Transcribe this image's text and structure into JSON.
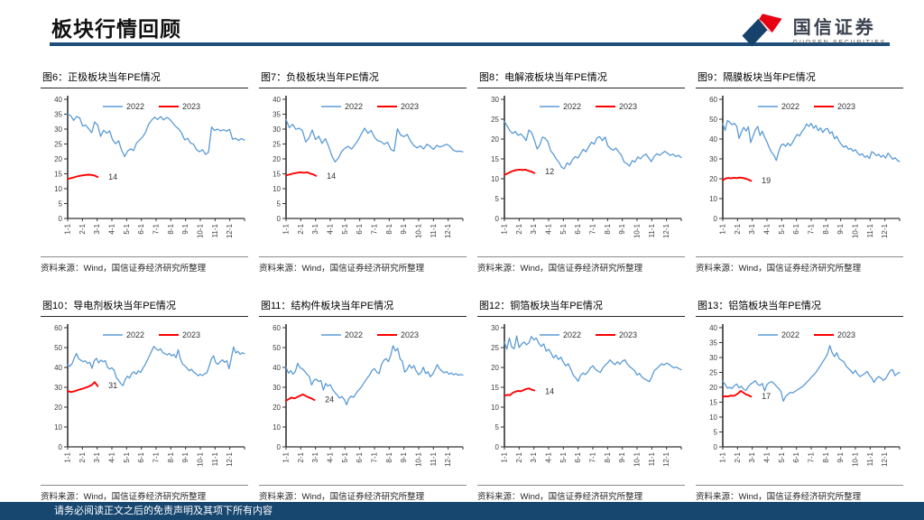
{
  "header": {
    "title": "板块行情回顾"
  },
  "logo": {
    "name_cn": "国信证券",
    "name_en": "GUOSEN SECURITIES",
    "colors": {
      "blue": "#16426B",
      "red": "#E60012"
    }
  },
  "footer": {
    "disclaimer": "请务必阅读正文之后的免责声明及其项下所有内容"
  },
  "colors": {
    "blue_line": "#5B9BD5",
    "red_line": "#FF0000",
    "navy": "#1F4E79",
    "axis": "#333333",
    "tick_text": "#404040"
  },
  "chart_data": {
    "type": "line",
    "x_labels": [
      "1-1",
      "2-1",
      "3-1",
      "4-1",
      "5-1",
      "6-1",
      "7-1",
      "8-1",
      "9-1",
      "10-1",
      "11-1",
      "12-1"
    ],
    "legend": [
      "2022",
      "2023"
    ],
    "legend_position": "top-center",
    "grid": false,
    "charts": [
      {
        "title": "图6：正极板块当年PE情况",
        "ylim": [
          0,
          40
        ],
        "ystep": 5,
        "series_2022": [
          35,
          34.5,
          32.9,
          34.2,
          33.8,
          31,
          31.4,
          30.1,
          28.8,
          32.4,
          31.4,
          27.6,
          29.6,
          28.6,
          29.4,
          26.4,
          25.1,
          26.1,
          22.9,
          20.8,
          22.6,
          23.4,
          22.8,
          25.4,
          26.3,
          27.4,
          29,
          31.6,
          33,
          34,
          33.2,
          34.2,
          33.1,
          33.9,
          33.4,
          32.1,
          30.9,
          30.1,
          28.7,
          26.4,
          26.9,
          25.3,
          24.9,
          23.1,
          22.4,
          23.1,
          21.5,
          22.2,
          30.7,
          29.5,
          30,
          29.4,
          29.8,
          29.3,
          29.9,
          26.6,
          26.9,
          26.2,
          26.8,
          26.3
        ],
        "series_2023": [
          13.2,
          13.5,
          13.8,
          14.1,
          14.3,
          14.5,
          14.6,
          14.7,
          14.6,
          14.4,
          13.9
        ],
        "red_x_end": 0.17,
        "annotation": "14",
        "annotation_y": 14,
        "source": "资料来源：Wind，国信证券经济研究所整理"
      },
      {
        "title": "图7：负极板块当年PE情况",
        "ylim": [
          0,
          40
        ],
        "ystep": 5,
        "series_2022": [
          33.2,
          30.5,
          31.6,
          29.9,
          30.3,
          29.5,
          25.7,
          26.9,
          29.7,
          26.5,
          27.6,
          25.2,
          26.8,
          24.2,
          21,
          19,
          20.3,
          22.5,
          23.6,
          24.2,
          23.3,
          24.7,
          26.3,
          28.4,
          30.3,
          28.6,
          29.5,
          27.3,
          26.1,
          25.8,
          24.9,
          25.6,
          23.2,
          22.6,
          30.1,
          28,
          27.5,
          28.2,
          26,
          24.5,
          23.7,
          24.4,
          23.3,
          24.9,
          24.2,
          23.2,
          24.5,
          24,
          24.4,
          24.9,
          24.3,
          23,
          22.5,
          22.6,
          22.4
        ],
        "series_2023": [
          14.5,
          14.7,
          15,
          15.2,
          15.4,
          15.5,
          15.3,
          15.5,
          15.1,
          14.8,
          14.3
        ],
        "red_x_end": 0.17,
        "annotation": "14",
        "annotation_y": 14.3,
        "source": "资料来源：Wind，国信证券经济研究所整理"
      },
      {
        "title": "图8：电解液板块当年PE情况",
        "ylim": [
          0,
          30
        ],
        "ystep": 5,
        "series_2022": [
          24.4,
          23.3,
          22.1,
          21.4,
          21.9,
          20.9,
          21.3,
          20.6,
          19.6,
          22.3,
          21.6,
          19.8,
          17.5,
          18.5,
          20.5,
          20.2,
          19.3,
          17,
          16.2,
          15,
          14.2,
          12.9,
          12.5,
          14,
          13.5,
          14.8,
          15.6,
          15.2,
          16.3,
          17.4,
          16.8,
          18.1,
          19.2,
          18.7,
          20.3,
          20.6,
          19.6,
          20.5,
          18.3,
          17.6,
          17.2,
          17.7,
          16.8,
          15.9,
          14.2,
          13.8,
          13.2,
          14.6,
          14.2,
          15.5,
          15,
          15.8,
          16.2,
          15.3,
          14.3,
          15.6,
          16.3,
          15.9,
          16.4,
          16.9,
          16.4,
          15.9,
          16.2,
          15.6,
          15.9,
          15.3
        ],
        "series_2023": [
          11,
          11.3,
          11.7,
          12,
          12.2,
          12.3,
          12.2,
          12.3,
          12,
          11.8,
          11.4
        ],
        "red_x_end": 0.17,
        "annotation": "12",
        "annotation_y": 11.8,
        "source": "资料来源：Wind，国信证券经济研究所整理"
      },
      {
        "title": "图9：隔膜板块当年PE情况",
        "ylim": [
          0,
          60
        ],
        "ystep": 10,
        "series_2022": [
          47.8,
          44.3,
          49.3,
          48.5,
          47.2,
          47.9,
          46.3,
          40.3,
          43.6,
          45.9,
          44,
          46.2,
          38.2,
          41.5,
          44.5,
          46.3,
          41.8,
          43.9,
          40.9,
          38.5,
          35.5,
          33.2,
          31.9,
          29.2,
          33.5,
          36.8,
          37.5,
          36.3,
          37.9,
          36.6,
          38.3,
          40.6,
          42.3,
          41.5,
          43.8,
          45.2,
          47.6,
          46.3,
          47.9,
          45.4,
          46.8,
          44.2,
          45.6,
          43.3,
          44.9,
          45.3,
          42.8,
          43.6,
          40.2,
          41.3,
          38.9,
          37.2,
          35.9,
          36.6,
          34.8,
          35.3,
          33.9,
          34.6,
          32.8,
          31.9,
          32.6,
          30.8,
          31.5,
          30.2,
          33.6,
          32.9,
          31.6,
          32.3,
          30.9,
          31.8,
          30.4,
          32.9,
          31.4,
          29.8,
          30.6,
          29.3,
          28.7
        ],
        "series_2023": [
          19.3,
          20.1,
          20.4,
          20.2,
          20.5,
          20.3,
          20.6,
          20.4,
          20.1,
          19.6,
          18.9
        ],
        "red_x_end": 0.16,
        "annotation": "19",
        "annotation_y": 19.2,
        "source": "资料来源：Wind，国信证券经济研究所整理"
      },
      {
        "title": "图10：导电剂板块当年PE情况",
        "ylim": [
          0,
          60
        ],
        "ystep": 10,
        "series_2022": [
          41.3,
          40.6,
          41.9,
          44.8,
          47,
          44.3,
          43.6,
          42.9,
          43.3,
          42.1,
          42.6,
          39.6,
          43.3,
          44.6,
          42.3,
          43.7,
          42.9,
          43.4,
          40.1,
          39.2,
          39.8,
          38.6,
          34.9,
          33.6,
          31.9,
          30.8,
          33.9,
          35.6,
          34.7,
          36.9,
          37.8,
          36.6,
          38.3,
          37.4,
          39.6,
          41.3,
          43.6,
          45.9,
          48.3,
          50.6,
          49.3,
          48.6,
          49.4,
          47.6,
          46.9,
          46.3,
          47.1,
          45.8,
          46.6,
          44.9,
          48.9,
          44.3,
          41.6,
          40.9,
          39.6,
          38.3,
          39.1,
          37.6,
          36.9,
          35.8,
          36.6,
          35.9,
          36.8,
          37.3,
          40.6,
          44.3,
          45.8,
          42.3,
          41.6,
          42.9,
          43.8,
          42.6,
          43.4,
          39.3,
          44.6,
          50.3,
          47.3,
          48.1,
          46.6,
          47.4,
          46.9
        ],
        "series_2023": [
          28.2,
          27.6,
          27.9,
          28.4,
          28.9,
          29.3,
          29.8,
          30.4,
          31.2,
          32.6,
          30.6
        ],
        "red_x_end": 0.17,
        "annotation": "31",
        "annotation_y": 30.8,
        "source": "资料来源：Wind，国信证券经济研究所整理"
      },
      {
        "title": "图11：结构件板块当年PE情况",
        "ylim": [
          0,
          60
        ],
        "ystep": 10,
        "series_2022": [
          40.2,
          37.1,
          38.4,
          36.6,
          37.9,
          42.1,
          39.8,
          39.3,
          38.1,
          36.6,
          35.4,
          31.2,
          33.6,
          34.1,
          32.9,
          33.4,
          28.6,
          31.9,
          30.6,
          31.3,
          28.9,
          27.3,
          26.1,
          24.6,
          25.3,
          23.9,
          21.2,
          24.3,
          25.6,
          24.9,
          26.8,
          28.3,
          29.6,
          31.3,
          33.1,
          34.9,
          36.3,
          38.6,
          39.4,
          37.6,
          36.9,
          41.3,
          43.6,
          44.4,
          42.9,
          46.4,
          50.9,
          48.3,
          49.6,
          44.3,
          43.1,
          37.6,
          38.9,
          41.3,
          39.6,
          40.9,
          38.1,
          36.3,
          37.4,
          40.1,
          36.9,
          37.8,
          35.3,
          36.6,
          38.9,
          41.4,
          39.3,
          38.1,
          37.3,
          37.9,
          36.6,
          37.2,
          36.3,
          36.9,
          36.1,
          36.4,
          36.2
        ],
        "series_2023": [
          23.2,
          24.1,
          24.8,
          24.4,
          25.1,
          25.8,
          26.4,
          25.6,
          24.9,
          24.4,
          23.6
        ],
        "red_x_end": 0.16,
        "annotation": "24",
        "annotation_y": 23.8,
        "source": "资料来源：Wind，国信证券经济研究所整理"
      },
      {
        "title": "图12：铜箔板块当年PE情况",
        "ylim": [
          0,
          30
        ],
        "ystep": 5,
        "series_2022": [
          26.4,
          24.6,
          27.4,
          25.1,
          24.7,
          27.9,
          25,
          25.9,
          26.4,
          25.7,
          26.2,
          27.8,
          26.9,
          27.4,
          26.1,
          25.3,
          25.9,
          24.1,
          24.6,
          23.6,
          22.4,
          23.1,
          22,
          22.6,
          21.3,
          20.4,
          20.9,
          19.6,
          18.1,
          17.4,
          16.5,
          18,
          18.6,
          18.2,
          18.9,
          19.9,
          20.4,
          19.6,
          19.1,
          18.7,
          19.8,
          20.6,
          21.1,
          21.9,
          21.2,
          20.7,
          21.4,
          20.8,
          21.6,
          21.9,
          20.9,
          20.2,
          19.7,
          19.2,
          18.1,
          18.5,
          17.6,
          17.1,
          16.8,
          16.4,
          17.6,
          19.2,
          19.7,
          20.3,
          20.9,
          20.6,
          21.1,
          20.8,
          20.3,
          19.9,
          20.1,
          19.7,
          19.4
        ],
        "series_2023": [
          12.9,
          13.1,
          13,
          13.6,
          13.9,
          14.1,
          14,
          14.3,
          14.6,
          14.7,
          14.4,
          14.2
        ],
        "red_x_end": 0.17,
        "annotation": "14",
        "annotation_y": 14,
        "source": "资料来源：Wind，国信证券经济研究所整理"
      },
      {
        "title": "图13：铝箔板块当年PE情况",
        "ylim": [
          0,
          40
        ],
        "ystep": 5,
        "series_2022": [
          22.1,
          21,
          19.7,
          20,
          19.6,
          20.6,
          21.1,
          19.8,
          20.4,
          19.3,
          19,
          20.3,
          21.1,
          21.6,
          22.2,
          21,
          20.6,
          21.3,
          18.8,
          20.9,
          21.6,
          21.9,
          21.3,
          20.4,
          19.6,
          18.6,
          15.3,
          16.9,
          17.6,
          18.3,
          18.1,
          18.6,
          19.1,
          19.6,
          20.1,
          20.8,
          21.6,
          22.4,
          23.3,
          24.1,
          25,
          26.1,
          27.3,
          28.6,
          29.8,
          31.2,
          34,
          31.6,
          30.3,
          31.6,
          29.6,
          29.1,
          28.6,
          27.1,
          26.3,
          25.6,
          24.6,
          25.7,
          24.3,
          23.6,
          24.1,
          24.6,
          25.3,
          24.1,
          23.1,
          21.6,
          22.9,
          23.6,
          23.1,
          22.3,
          22.9,
          24.3,
          25.6,
          25.9,
          23.9,
          24.6,
          25
        ],
        "series_2023": [
          16.8,
          17,
          16.9,
          17.2,
          17.1,
          17.4,
          18,
          18.8,
          18.2,
          17.6,
          17.3,
          16.9
        ],
        "red_x_end": 0.16,
        "annotation": "17",
        "annotation_y": 16.9,
        "source": "资料来源：Wind，国信证券经济研究所整理"
      }
    ]
  }
}
